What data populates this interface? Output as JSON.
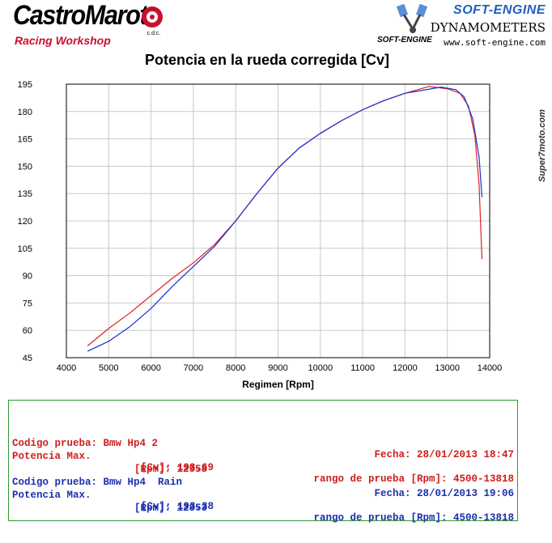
{
  "header": {
    "brand_name": "CastroMarot",
    "brand_sub": "Racing Workshop",
    "brand_logo_text": "c.d.c.",
    "dyno_brand": "SOFT-ENGINE",
    "dyno_title": "DYNAMOMETERS",
    "dyno_url": "www.soft-engine.com",
    "dyno_mini": "SOFT-ENGINE"
  },
  "side_brand": "Super7moto.com",
  "colors": {
    "run1": "#e02020",
    "run2": "#1a2ecf",
    "box_border": "#2e9a2e",
    "grid": "#c8c8c8"
  },
  "chart_data": {
    "type": "line",
    "title": "Potencia en la rueda corregida [Cv]",
    "xlabel": "Regimen [Rpm]",
    "ylabel": "",
    "xlim": [
      4000,
      14000
    ],
    "ylim": [
      45,
      195
    ],
    "xticks": [
      4000,
      5000,
      6000,
      7000,
      8000,
      9000,
      10000,
      11000,
      12000,
      13000,
      14000
    ],
    "yticks": [
      45,
      60,
      75,
      90,
      105,
      120,
      135,
      150,
      165,
      180,
      195
    ],
    "grid": true,
    "series": [
      {
        "name": "Bmw Hp4 2",
        "color": "#e02020",
        "x": [
          4500,
          5000,
          5500,
          6000,
          6500,
          7000,
          7500,
          8000,
          8500,
          9000,
          9500,
          10000,
          10500,
          11000,
          11500,
          12000,
          12558,
          13000,
          13300,
          13500,
          13650,
          13750,
          13818
        ],
        "y": [
          51.5,
          61,
          69.5,
          79,
          88.5,
          97,
          107,
          120,
          135,
          149,
          160,
          168,
          175,
          181,
          186,
          190,
          193.7,
          192.5,
          190,
          183,
          167,
          140,
          99
        ]
      },
      {
        "name": "Bmw Hp4  Rain",
        "color": "#1a2ecf",
        "x": [
          4500,
          5000,
          5500,
          6000,
          6500,
          7000,
          7500,
          8000,
          8500,
          9000,
          9500,
          10000,
          10500,
          11000,
          11500,
          12000,
          12853,
          13200,
          13400,
          13600,
          13750,
          13818
        ],
        "y": [
          48.5,
          54,
          62,
          72,
          84,
          95,
          106,
          120,
          135,
          149,
          160,
          168,
          175,
          181,
          186,
          190,
          193.4,
          192,
          188,
          176,
          155,
          133
        ]
      }
    ]
  },
  "runs": [
    {
      "codigo_label": "Codigo prueba:",
      "codigo_value": "Bmw Hp4 2",
      "fecha_label": "Fecha:",
      "fecha_value": "28/01/2013 18:47",
      "potencia_label": "Potencia Max.",
      "cv_label": "[Cv]:",
      "cv_value": "193.69",
      "rango_label": "rango de prueba [Rpm]:",
      "rango_value": "4500-13818",
      "rpm_label": "[Rpm]:",
      "rpm_value": "12558"
    },
    {
      "codigo_label": "Codigo prueba:",
      "codigo_value": "Bmw Hp4  Rain",
      "fecha_label": "Fecha:",
      "fecha_value": "28/01/2013 19:06",
      "potencia_label": "Potencia Max.",
      "cv_label": "[Cv]:",
      "cv_value": "193.38",
      "rango_label": "rango de prueba [Rpm]:",
      "rango_value": "4500-13818",
      "rpm_label": "[Rpm]:",
      "rpm_value": "12853"
    }
  ]
}
